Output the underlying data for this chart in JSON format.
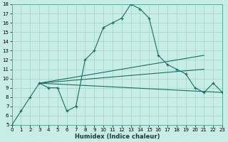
{
  "xlabel": "Humidex (Indice chaleur)",
  "bg_color": "#c8ece6",
  "grid_color": "#a0d4cc",
  "line_color": "#1a6e64",
  "xlim": [
    0,
    23
  ],
  "ylim": [
    5,
    18
  ],
  "xticks": [
    0,
    1,
    2,
    3,
    4,
    5,
    6,
    7,
    8,
    9,
    10,
    11,
    12,
    13,
    14,
    15,
    16,
    17,
    18,
    19,
    20,
    21,
    22,
    23
  ],
  "yticks": [
    5,
    6,
    7,
    8,
    9,
    10,
    11,
    12,
    13,
    14,
    15,
    16,
    17,
    18
  ],
  "line1_x": [
    0,
    1,
    2,
    3,
    4,
    5,
    6,
    7,
    8,
    9,
    10,
    11,
    12,
    13,
    14,
    15,
    16,
    17,
    18,
    19,
    20,
    21,
    22,
    23
  ],
  "line1_y": [
    5.0,
    6.5,
    8.0,
    9.5,
    9.0,
    9.0,
    6.5,
    7.0,
    12.0,
    13.0,
    15.5,
    16.0,
    16.5,
    18.0,
    17.5,
    16.5,
    12.5,
    11.5,
    11.0,
    10.5,
    9.0,
    8.5,
    9.5,
    8.5
  ],
  "line2_x": [
    3,
    23
  ],
  "line2_y": [
    9.5,
    8.5
  ],
  "line3_x": [
    3,
    21
  ],
  "line3_y": [
    9.5,
    12.5
  ],
  "line4_x": [
    3,
    21
  ],
  "line4_y": [
    9.5,
    11.0
  ]
}
